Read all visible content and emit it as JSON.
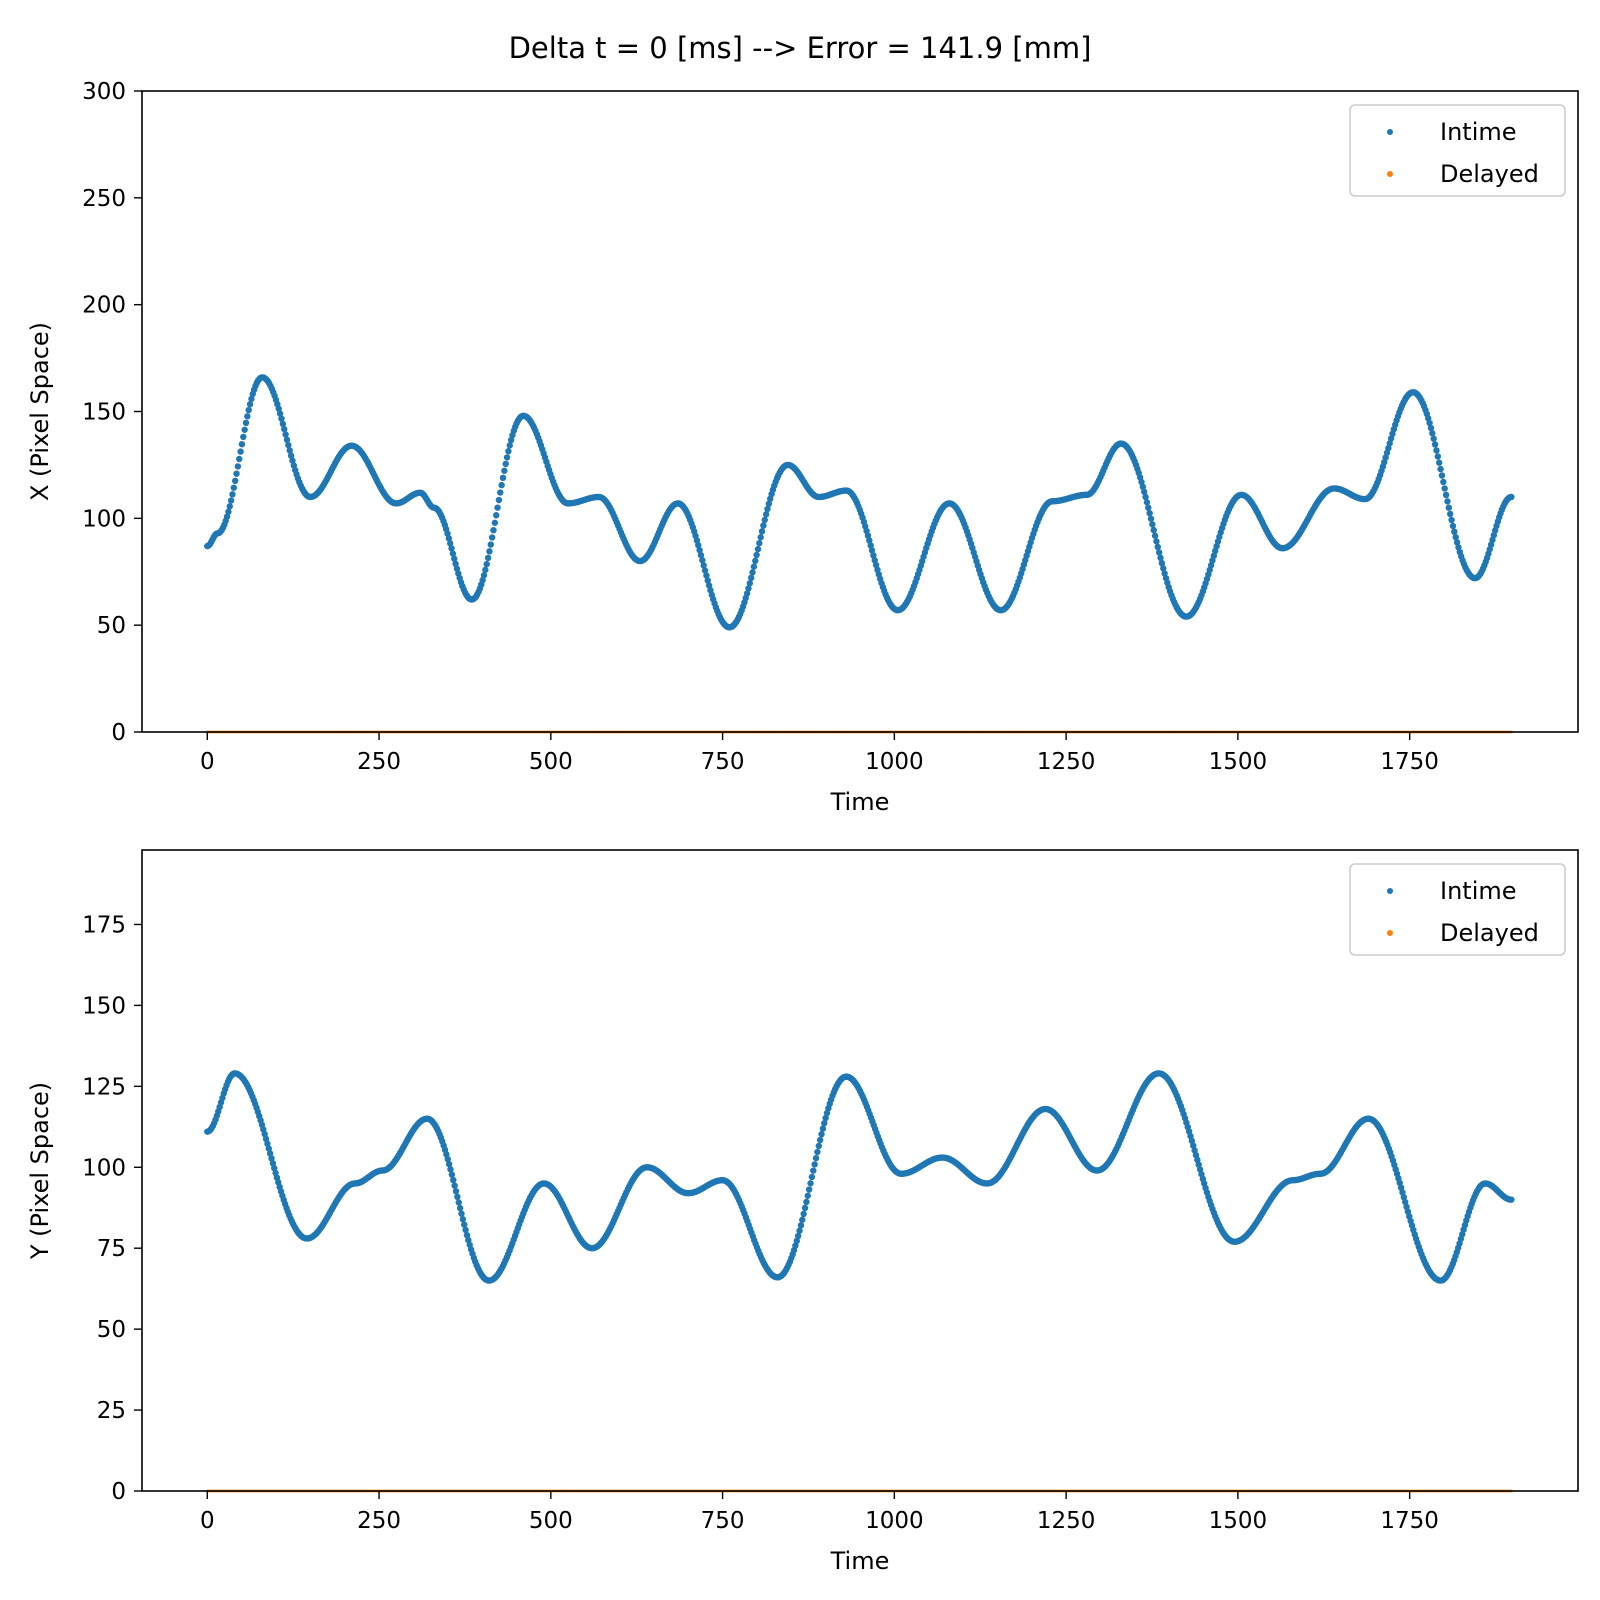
{
  "chart_data": {
    "type": "scatter",
    "title": "Delta t = 0 [ms] --> Error = 141.9 [mm]",
    "colors": {
      "Intime": "#1f77b4",
      "Delayed": "#ff7f0e"
    },
    "legend_position": "top-right",
    "grid": false,
    "subplots": [
      {
        "xlabel": "Time",
        "ylabel": "X (Pixel Space)",
        "xlim": [
          -95,
          1995
        ],
        "ylim": [
          0,
          300
        ],
        "xticks": [
          0,
          250,
          500,
          750,
          1000,
          1250,
          1500,
          1750
        ],
        "yticks": [
          0,
          50,
          100,
          150,
          200,
          250,
          300
        ],
        "legend": [
          "Intime",
          "Delayed"
        ],
        "series": [
          {
            "name": "Intime",
            "x": [
              0,
              15,
              80,
              150,
              210,
              275,
              310,
              330,
              385,
              460,
              525,
              570,
              630,
              685,
              760,
              845,
              890,
              930,
              1005,
              1080,
              1155,
              1230,
              1280,
              1330,
              1425,
              1505,
              1565,
              1640,
              1685,
              1755,
              1845,
              1898
            ],
            "y": [
              87,
              93,
              166,
              110,
              134,
              107,
              112,
              105,
              62,
              148,
              107,
              110,
              80,
              107,
              49,
              125,
              110,
              113,
              57,
              107,
              57,
              108,
              111,
              135,
              54,
              111,
              86,
              114,
              109,
              159,
              72,
              110
            ]
          },
          {
            "name": "Delayed",
            "x": [
              0,
              1898
            ],
            "y": [
              0,
              0
            ]
          }
        ]
      },
      {
        "xlabel": "Time",
        "ylabel": "Y (Pixel Space)",
        "xlim": [
          -95,
          1995
        ],
        "ylim": [
          0,
          198
        ],
        "xticks": [
          0,
          250,
          500,
          750,
          1000,
          1250,
          1500,
          1750
        ],
        "yticks": [
          0,
          25,
          50,
          75,
          100,
          125,
          150,
          175
        ],
        "legend": [
          "Intime",
          "Delayed"
        ],
        "series": [
          {
            "name": "Intime",
            "x": [
              0,
              40,
              145,
              215,
              255,
              320,
              410,
              490,
              560,
              640,
              700,
              750,
              830,
              930,
              1010,
              1070,
              1135,
              1220,
              1295,
              1385,
              1495,
              1580,
              1620,
              1690,
              1795,
              1860,
              1898
            ],
            "y": [
              111,
              129,
              78,
              95,
              99,
              115,
              65,
              95,
              75,
              100,
              92,
              96,
              66,
              128,
              98,
              103,
              95,
              118,
              99,
              129,
              77,
              96,
              98,
              115,
              65,
              95,
              90
            ]
          },
          {
            "name": "Delayed",
            "x": [
              0,
              1898
            ],
            "y": [
              0,
              0
            ]
          }
        ]
      }
    ]
  }
}
